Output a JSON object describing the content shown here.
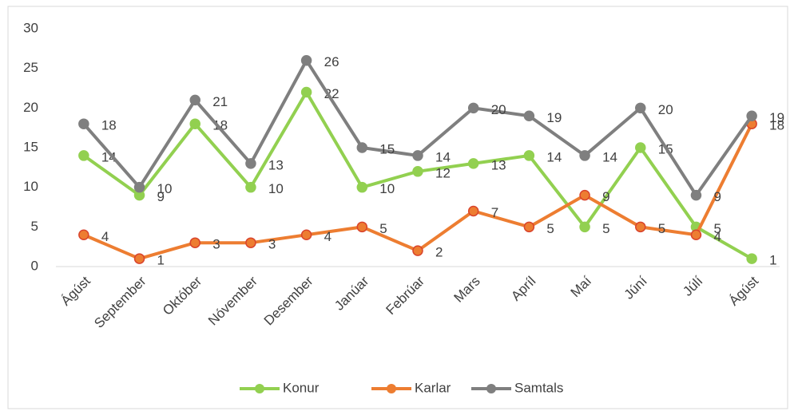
{
  "chart_data": {
    "type": "line",
    "categories": [
      "Ágúst",
      "September",
      "Október",
      "Nóvember",
      "Desember",
      "Janúar",
      "Febrúar",
      "Mars",
      "Apríl",
      "Maí",
      "Júní",
      "Júlí",
      "Ágúst"
    ],
    "series": [
      {
        "name": "Konur",
        "color": "#92d050",
        "values": [
          14,
          9,
          18,
          10,
          22,
          10,
          12,
          13,
          14,
          5,
          15,
          5,
          1
        ]
      },
      {
        "name": "Karlar",
        "color": "#ed7d31",
        "values": [
          4,
          1,
          3,
          3,
          4,
          5,
          2,
          7,
          5,
          9,
          5,
          4,
          18
        ]
      },
      {
        "name": "Samtals",
        "color": "#7f7f7f",
        "values": [
          18,
          10,
          21,
          13,
          26,
          15,
          14,
          20,
          19,
          14,
          20,
          9,
          19
        ]
      }
    ],
    "ylim": [
      0,
      30
    ],
    "yticks": [
      0,
      5,
      10,
      15,
      20,
      25,
      30
    ],
    "grid": false,
    "legend": "bottom"
  }
}
